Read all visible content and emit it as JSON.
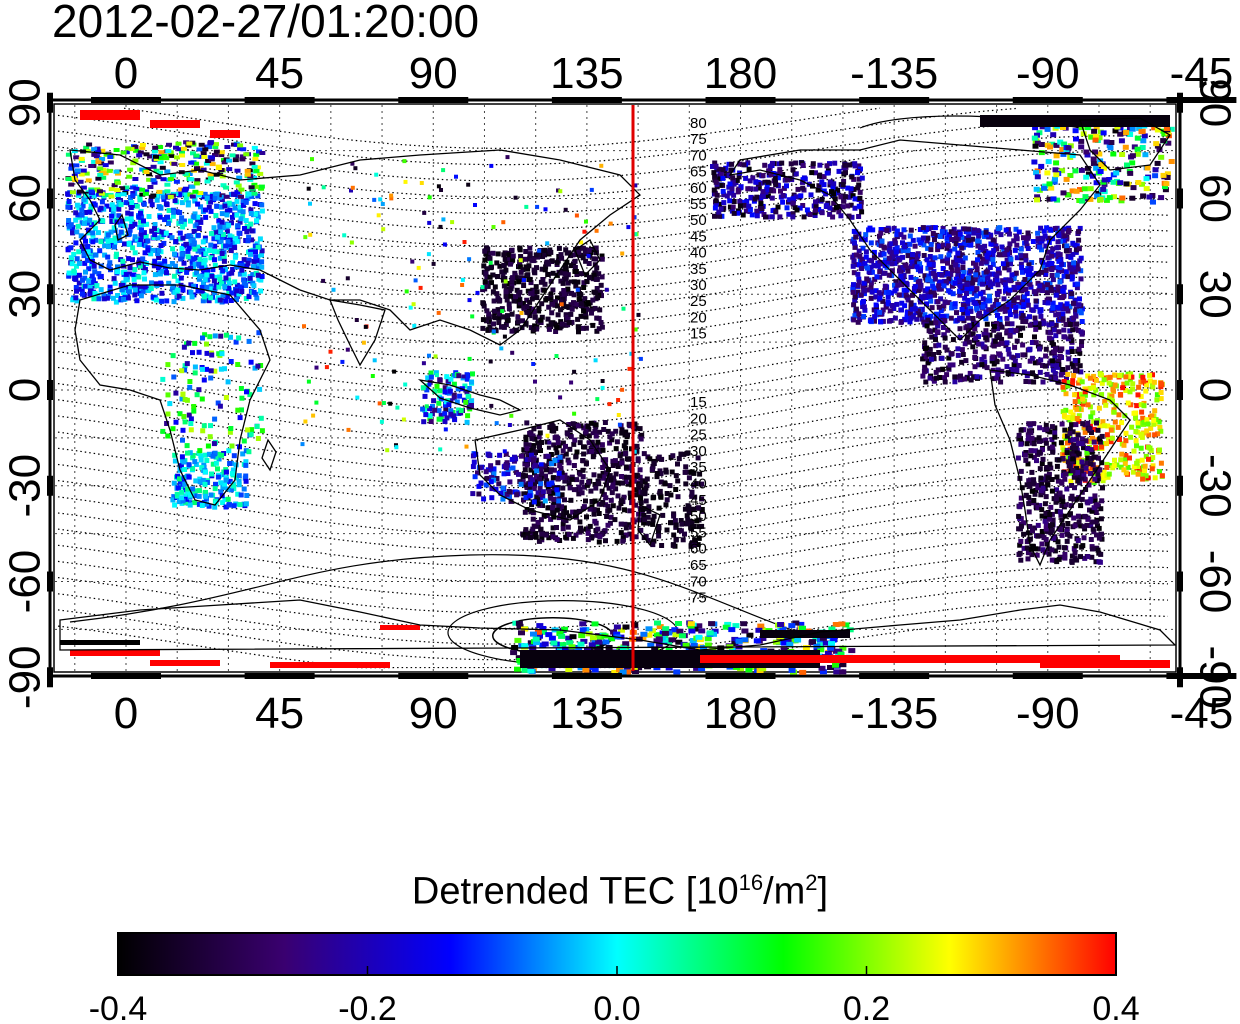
{
  "title": "2012-02-27/01:20:00",
  "map": {
    "top_axis_labels": [
      "0",
      "45",
      "90",
      "135",
      "180",
      "-135",
      "-90",
      "-45"
    ],
    "bottom_axis_labels": [
      "0",
      "45",
      "90",
      "135",
      "180",
      "-135",
      "-90",
      "-45"
    ],
    "left_axis_labels": [
      "90",
      "60",
      "30",
      "0",
      "-30",
      "-60",
      "-90"
    ],
    "right_axis_labels": [
      "90",
      "60",
      "30",
      "0",
      "-30",
      "-60",
      "-90"
    ],
    "magnetic_latitude_labels_north": [
      "80",
      "75",
      "70",
      "65",
      "60",
      "55",
      "50",
      "45",
      "40",
      "35",
      "30",
      "25",
      "20",
      "15"
    ],
    "magnetic_latitude_labels_south": [
      "15",
      "20",
      "25",
      "30",
      "35",
      "40",
      "45",
      "50",
      "55",
      "60",
      "65",
      "70",
      "75"
    ],
    "colors": {
      "frame": "#000000",
      "meridian_line": "#e00000"
    }
  },
  "colorbar": {
    "label_main": "Detrended TEC  [10",
    "label_sup1": "16",
    "label_mid": "/m",
    "label_sup2": "2",
    "label_end": "]",
    "tick_labels": [
      "-0.4",
      "-0.2",
      "0.0",
      "0.2",
      "0.4"
    ],
    "range": [
      -0.4,
      0.4
    ],
    "stops": [
      "#000000",
      "#3a0070",
      "#0000ff",
      "#00ffff",
      "#00ff00",
      "#ffff00",
      "#ff0000"
    ]
  }
}
